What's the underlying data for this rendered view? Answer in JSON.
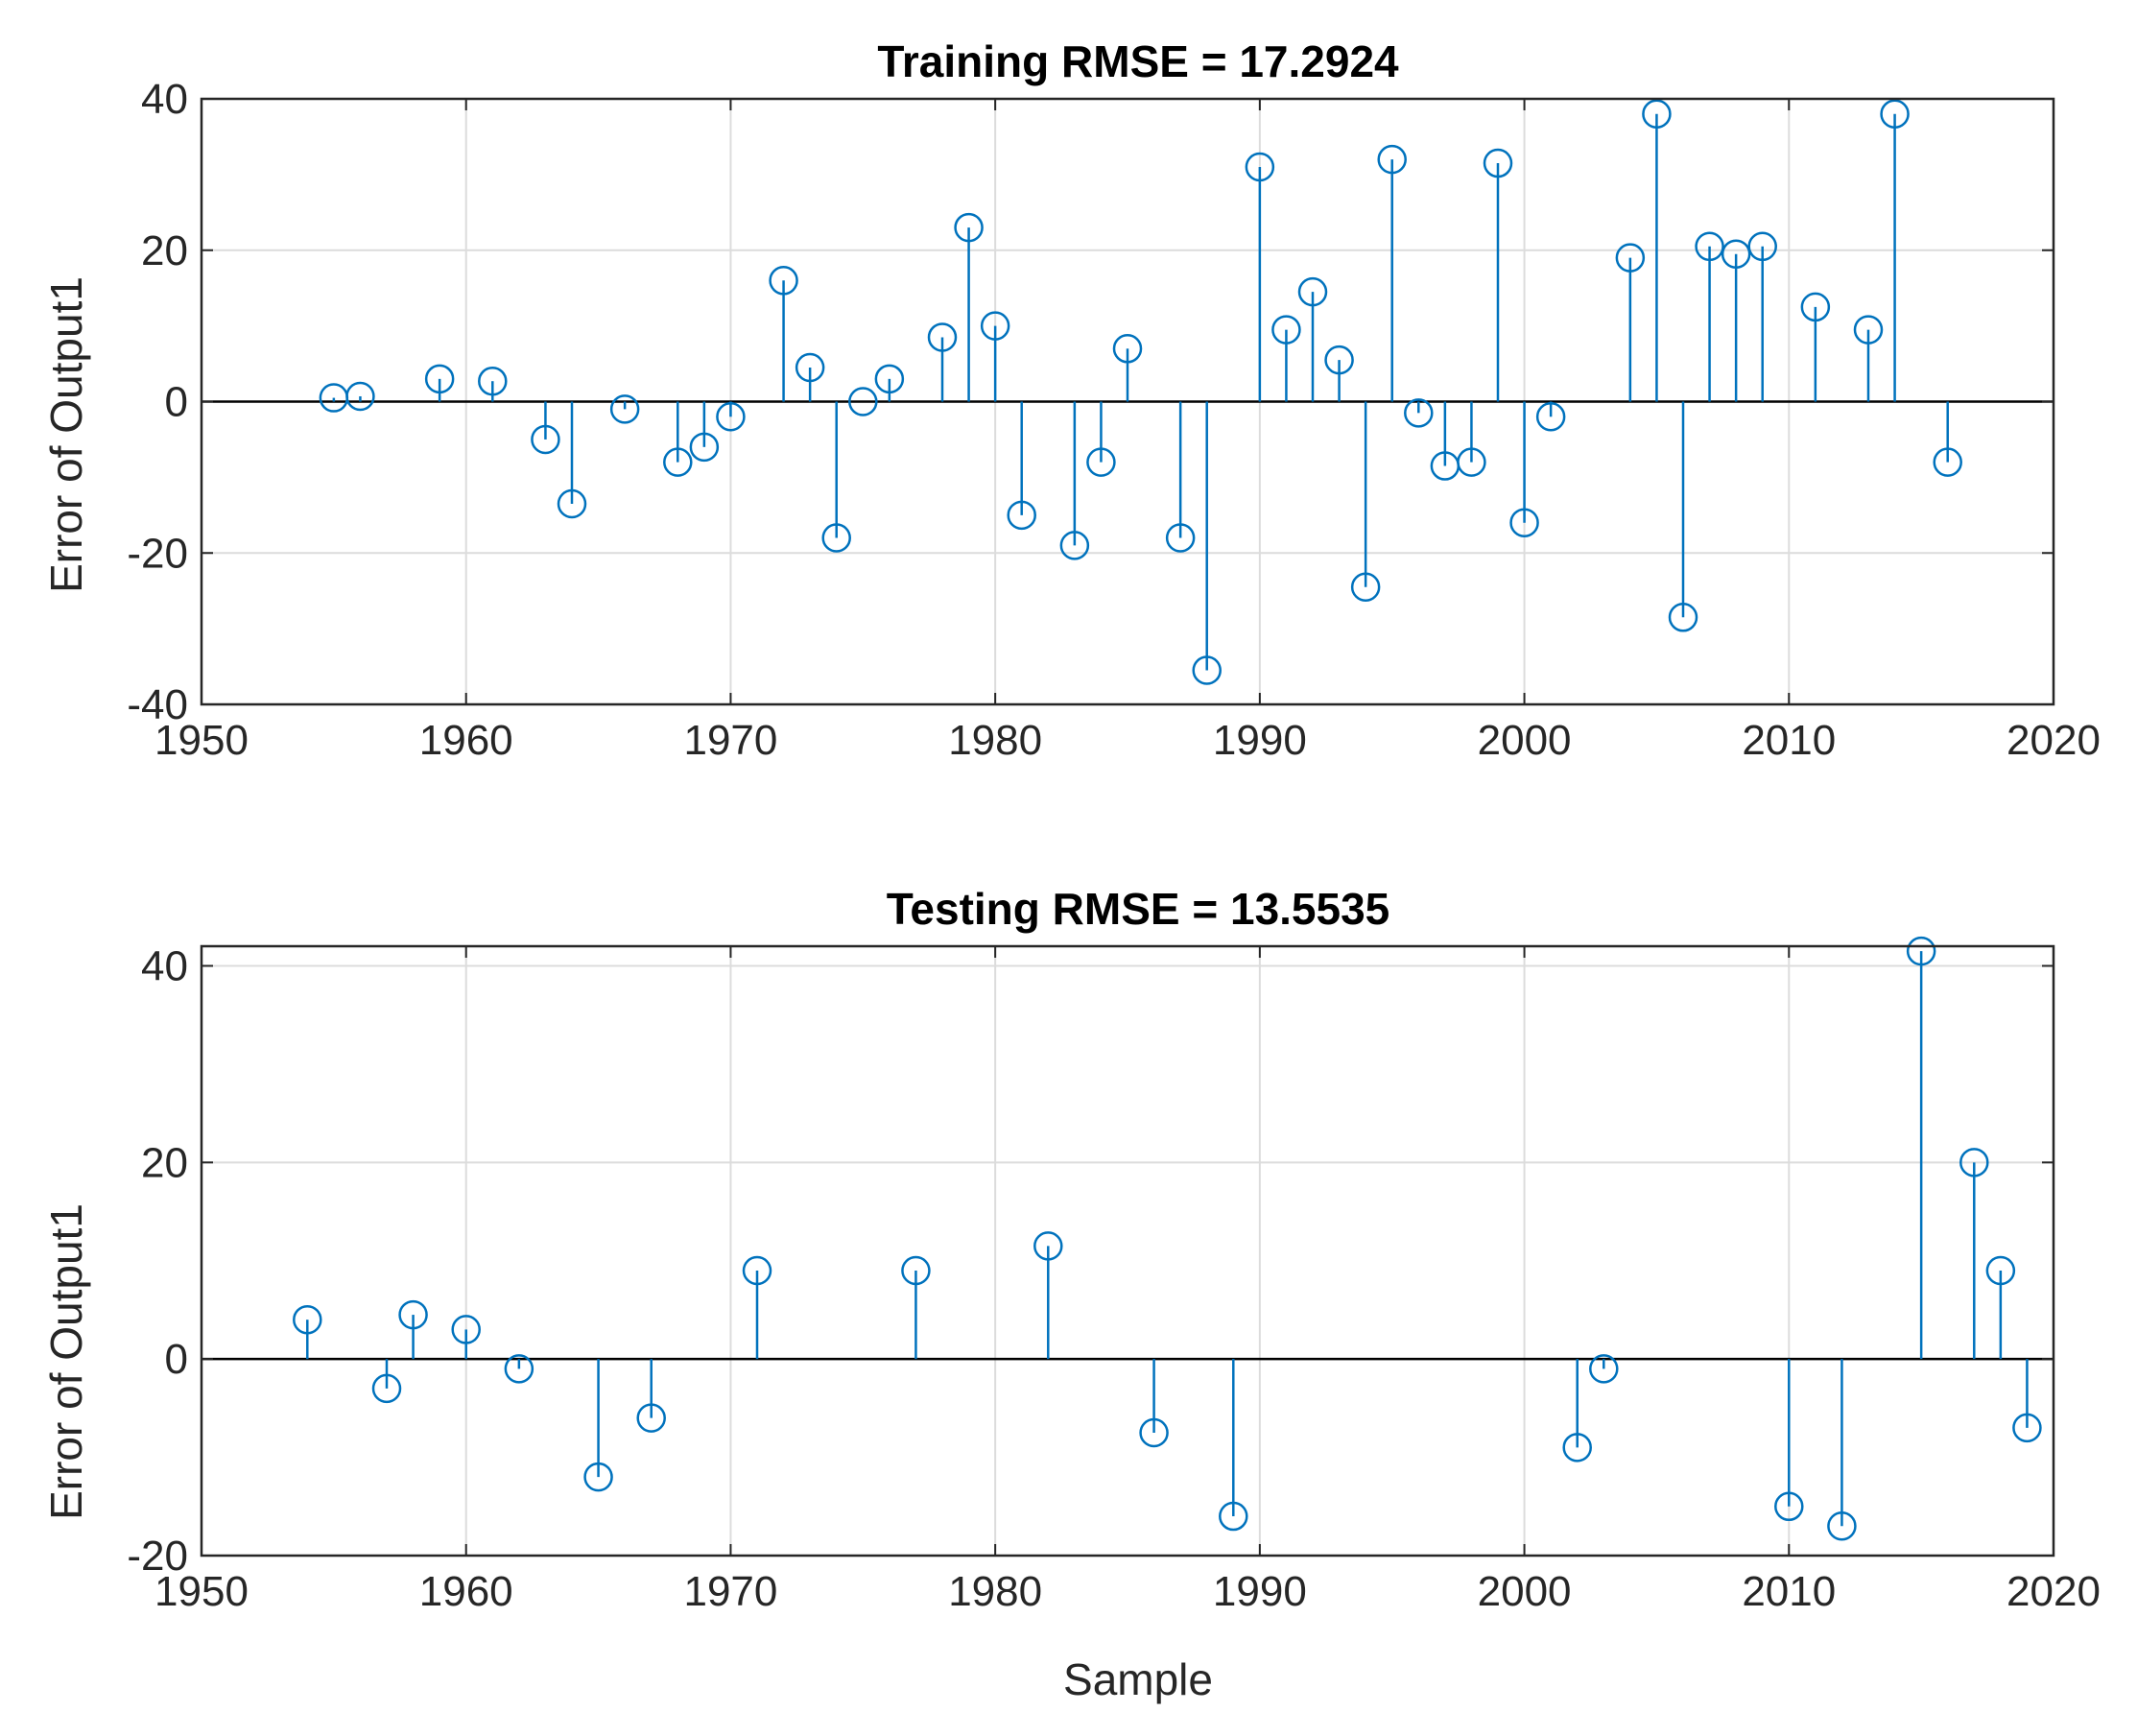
{
  "colors": {
    "series": "#0072BD",
    "grid": "#dcdcdc",
    "axis": "#262626"
  },
  "chart_data": [
    {
      "type": "stem",
      "title": "Training RMSE = 17.2924",
      "xlabel": "",
      "ylabel": "Error of Output1",
      "xlim": [
        1950,
        2020
      ],
      "ylim": [
        -40,
        40
      ],
      "xticks": [
        1950,
        1960,
        1970,
        1980,
        1990,
        2000,
        2010,
        2020
      ],
      "yticks": [
        -40,
        -20,
        0,
        20,
        40
      ],
      "grid": true,
      "x": [
        1955,
        1956,
        1959,
        1961,
        1963,
        1964,
        1966,
        1968,
        1969,
        1970,
        1972,
        1973,
        1974,
        1975,
        1976,
        1978,
        1979,
        1980,
        1981,
        1983,
        1984,
        1985,
        1987,
        1988,
        1990,
        1991,
        1992,
        1993,
        1994,
        1995,
        1996,
        1997,
        1998,
        1999,
        2000,
        2001,
        2004,
        2005,
        2006,
        2007,
        2008,
        2009,
        2011,
        2013,
        2014,
        2016
      ],
      "y": [
        0.5,
        0.7,
        3,
        2.7,
        -5,
        -13.5,
        -1,
        -8,
        -6,
        -2,
        16,
        4.5,
        -18,
        0,
        3,
        8.5,
        23,
        10,
        -15,
        -19,
        -8,
        7,
        -18,
        -35.5,
        31,
        9.5,
        14.5,
        5.5,
        -24.5,
        32,
        -1.5,
        -8.5,
        -8,
        31.5,
        -16,
        -2,
        19,
        38,
        -28.5,
        20.5,
        19.5,
        20.5,
        12.5,
        9.5,
        38,
        -8
      ]
    },
    {
      "type": "stem",
      "title": "Testing RMSE = 13.5535",
      "xlabel": "Sample",
      "ylabel": "Error of Output1",
      "xlim": [
        1950,
        2020
      ],
      "ylim": [
        -20,
        42
      ],
      "xticks": [
        1950,
        1960,
        1970,
        1980,
        1990,
        2000,
        2010,
        2020
      ],
      "yticks": [
        -20,
        0,
        20,
        40
      ],
      "grid": true,
      "x": [
        1954,
        1957,
        1958,
        1960,
        1962,
        1965,
        1967,
        1971,
        1977,
        1982,
        1986,
        1989,
        2002,
        2003,
        2010,
        2012,
        2015,
        2017,
        2018,
        2019
      ],
      "y": [
        4,
        -3,
        4.5,
        3,
        -1,
        -12,
        -6,
        9,
        9,
        11.5,
        -7.5,
        -16,
        -9,
        -1,
        -15,
        -17,
        41.5,
        20,
        9,
        -7
      ]
    }
  ]
}
